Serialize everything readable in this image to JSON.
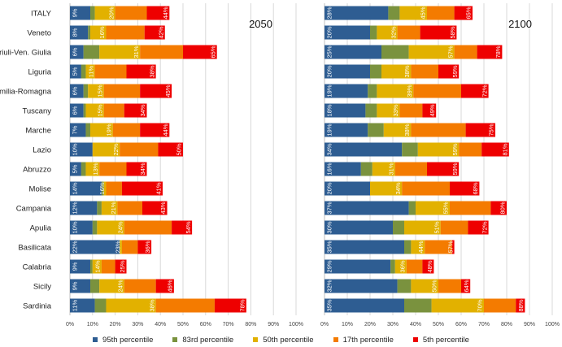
{
  "chart_data": [
    {
      "type": "bar",
      "orientation": "horizontal",
      "stacked": "cumulative",
      "title": "2050",
      "categories": [
        "ITALY",
        "Veneto",
        "Friuli-Ven. Giulia",
        "Liguria",
        "Emilia-Romagna",
        "Tuscany",
        "Marche",
        "Lazio",
        "Abruzzo",
        "Molise",
        "Campania",
        "Apulia",
        "Basilicata",
        "Calabria",
        "Sicily",
        "Sardinia"
      ],
      "series": [
        {
          "name": "95th percentile",
          "values": [
            9,
            8,
            6,
            5,
            6,
            6,
            7,
            10,
            5,
            14,
            12,
            10,
            22,
            9,
            9,
            11
          ],
          "labeled": true
        },
        {
          "name": "83rd percentile",
          "values": [
            11,
            9,
            13,
            7,
            8,
            7,
            9,
            10,
            7,
            15,
            14,
            12,
            22,
            10,
            13,
            16
          ],
          "labeled": false
        },
        {
          "name": "50th percentile",
          "values": [
            20,
            16,
            31,
            11,
            15,
            15,
            19,
            22,
            13,
            16,
            21,
            24,
            23,
            14,
            24,
            38
          ],
          "labeled": true
        },
        {
          "name": "17th percentile",
          "values": [
            34,
            33,
            50,
            25,
            31,
            24,
            31,
            39,
            25,
            23,
            32,
            45,
            30,
            20,
            38,
            64
          ],
          "labeled": false
        },
        {
          "name": "5th percentile",
          "values": [
            44,
            42,
            65,
            38,
            45,
            34,
            44,
            50,
            34,
            41,
            43,
            54,
            36,
            25,
            46,
            78
          ],
          "labeled": true
        }
      ],
      "xlim": [
        0,
        100
      ],
      "xticks": [
        "0%",
        "10%",
        "20%",
        "30%",
        "40%",
        "50%",
        "60%",
        "70%",
        "80%",
        "90%",
        "100%"
      ],
      "grid": true
    },
    {
      "type": "bar",
      "orientation": "horizontal",
      "stacked": "cumulative",
      "title": "2100",
      "categories": [
        "ITALY",
        "Veneto",
        "Friuli-Ven. Giulia",
        "Liguria",
        "Emilia-Romagna",
        "Tuscany",
        "Marche",
        "Lazio",
        "Abruzzo",
        "Molise",
        "Campania",
        "Apulia",
        "Basilicata",
        "Calabria",
        "Sicily",
        "Sardinia"
      ],
      "series": [
        {
          "name": "95th percentile",
          "values": [
            28,
            20,
            25,
            20,
            19,
            18,
            19,
            34,
            16,
            20,
            37,
            30,
            35,
            29,
            32,
            35
          ],
          "labeled": true
        },
        {
          "name": "83rd percentile",
          "values": [
            33,
            23,
            37,
            25,
            23,
            23,
            26,
            41,
            21,
            20,
            40,
            35,
            38,
            31,
            38,
            47
          ],
          "labeled": false
        },
        {
          "name": "50th percentile",
          "values": [
            45,
            32,
            57,
            38,
            39,
            33,
            38,
            59,
            31,
            34,
            55,
            51,
            44,
            36,
            50,
            70
          ],
          "labeled": true
        },
        {
          "name": "17th percentile",
          "values": [
            57,
            42,
            67,
            50,
            60,
            43,
            62,
            69,
            45,
            55,
            73,
            63,
            56,
            43,
            60,
            84
          ],
          "labeled": false
        },
        {
          "name": "5th percentile",
          "values": [
            65,
            58,
            78,
            59,
            72,
            49,
            75,
            81,
            59,
            68,
            80,
            72,
            57,
            48,
            64,
            88
          ],
          "labeled": true
        }
      ],
      "xlim": [
        0,
        100
      ],
      "xticks": [
        "0%",
        "10%",
        "20%",
        "30%",
        "40%",
        "50%",
        "60%",
        "70%",
        "80%",
        "90%",
        "100%"
      ],
      "grid": true
    }
  ],
  "legend": {
    "position": "bottom",
    "items": [
      {
        "label": "95th percentile",
        "color": "#2e5d92"
      },
      {
        "label": "83rd percentile",
        "color": "#7a923e"
      },
      {
        "label": "50th percentile",
        "color": "#e2b100"
      },
      {
        "label": "17th percentile",
        "color": "#f47b00"
      },
      {
        "label": "5th percentile",
        "color": "#ee0000"
      }
    ]
  }
}
